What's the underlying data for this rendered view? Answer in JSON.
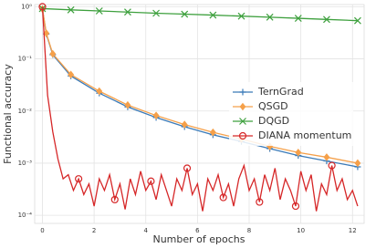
{
  "chart_data": {
    "type": "line",
    "ylog": true,
    "grid": true,
    "legend_loc": "center right",
    "xlabel": "Number of epochs",
    "ylabel": "Functional accuracy",
    "xlim": [
      -0.3,
      12.45
    ],
    "xticks": [
      0,
      2,
      4,
      6,
      8,
      10,
      12
    ],
    "ylim": [
      7e-05,
      1.1
    ],
    "yticks": [
      {
        "value": 0.0001,
        "label": "10⁻⁴"
      },
      {
        "value": 0.001,
        "label": "10⁻³"
      },
      {
        "value": 0.01,
        "label": "10⁻²"
      },
      {
        "value": 0.1,
        "label": "10⁻¹"
      },
      {
        "value": 1,
        "label": "10⁰"
      }
    ],
    "series": [
      {
        "name": "TernGrad",
        "color": "#3a7ab8",
        "marker": "plus",
        "x": [
          0,
          0.15,
          0.4,
          1.1,
          2.2,
          3.3,
          4.4,
          5.5,
          6.6,
          7.7,
          8.8,
          9.9,
          11.0,
          12.2
        ],
        "values": [
          0.9,
          0.3,
          0.12,
          0.047,
          0.022,
          0.012,
          0.0075,
          0.005,
          0.0035,
          0.0026,
          0.0019,
          0.0014,
          0.0011,
          0.00085
        ]
      },
      {
        "name": "QSGD",
        "color": "#f5a04a",
        "marker": "diamond",
        "x": [
          0,
          0.15,
          0.4,
          1.1,
          2.2,
          3.3,
          4.4,
          5.5,
          6.6,
          7.7,
          8.8,
          9.9,
          11.0,
          12.2
        ],
        "values": [
          0.9,
          0.31,
          0.125,
          0.05,
          0.024,
          0.013,
          0.0082,
          0.0055,
          0.0039,
          0.0029,
          0.0021,
          0.0016,
          0.0013,
          0.001
        ]
      },
      {
        "name": "DQGD",
        "color": "#3ea03e",
        "marker": "x",
        "x": [
          0,
          1.1,
          2.2,
          3.3,
          4.4,
          5.5,
          6.6,
          7.7,
          8.8,
          9.9,
          11.0,
          12.2
        ],
        "values": [
          0.92,
          0.87,
          0.83,
          0.79,
          0.75,
          0.72,
          0.69,
          0.66,
          0.63,
          0.6,
          0.57,
          0.54
        ]
      },
      {
        "name": "DIANA momentum",
        "color": "#d62728",
        "marker": "circle",
        "markevery": 7,
        "x": [
          0,
          0.2,
          0.4,
          0.6,
          0.8,
          1.0,
          1.2,
          1.4,
          1.6,
          1.8,
          2.0,
          2.2,
          2.4,
          2.6,
          2.8,
          3.0,
          3.2,
          3.4,
          3.6,
          3.8,
          4.0,
          4.2,
          4.4,
          4.6,
          4.8,
          5.0,
          5.2,
          5.4,
          5.6,
          5.8,
          6.0,
          6.2,
          6.4,
          6.6,
          6.8,
          7.0,
          7.2,
          7.4,
          7.6,
          7.8,
          8.0,
          8.2,
          8.4,
          8.6,
          8.8,
          9.0,
          9.2,
          9.4,
          9.6,
          9.8,
          10.0,
          10.2,
          10.4,
          10.6,
          10.8,
          11.0,
          11.2,
          11.4,
          11.6,
          11.8,
          12.0,
          12.2
        ],
        "values": [
          1,
          0.02,
          0.004,
          0.0012,
          0.0005,
          0.0006,
          0.0003,
          0.0005,
          0.00025,
          0.0004,
          0.00015,
          0.0005,
          0.0003,
          0.0006,
          0.0002,
          0.0004,
          0.00013,
          0.0005,
          0.00025,
          0.0007,
          0.0003,
          0.00045,
          0.0002,
          0.0006,
          0.0003,
          0.00015,
          0.0005,
          0.0003,
          0.0008,
          0.00025,
          0.0004,
          0.00012,
          0.0005,
          0.0003,
          0.0006,
          0.00022,
          0.0004,
          0.00015,
          0.0005,
          0.0009,
          0.0003,
          0.0005,
          0.00018,
          0.0006,
          0.0003,
          0.0008,
          0.0002,
          0.0005,
          0.0003,
          0.00015,
          0.0007,
          0.0003,
          0.0006,
          0.00012,
          0.0004,
          0.00025,
          0.0009,
          0.0003,
          0.0005,
          0.0002,
          0.0003,
          0.00015
        ]
      }
    ]
  }
}
